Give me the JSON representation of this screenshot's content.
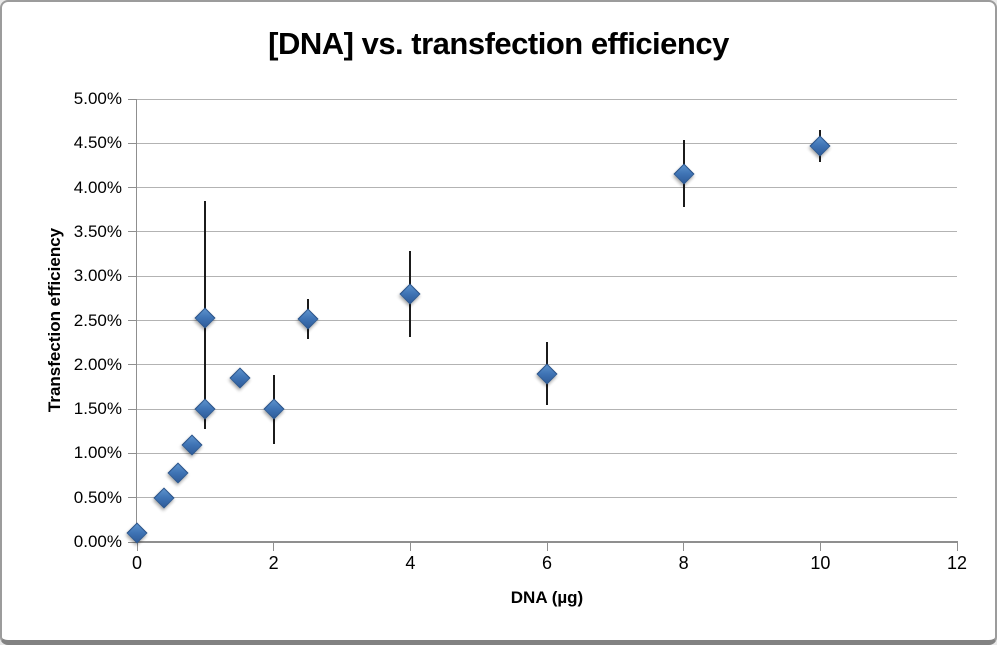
{
  "chart_data": {
    "type": "scatter",
    "title": "[DNA] vs. transfection efficiency",
    "xlabel": "DNA (µg)",
    "ylabel": "Transfection efficiency",
    "xlim": [
      0,
      12
    ],
    "ylim_percent": [
      0,
      5
    ],
    "x_tick_values": [
      0,
      2,
      4,
      6,
      8,
      10,
      12
    ],
    "x_tick_labels": [
      "0",
      "2",
      "4",
      "6",
      "8",
      "10",
      "12"
    ],
    "y_tick_values_percent": [
      0,
      0.5,
      1,
      1.5,
      2,
      2.5,
      3,
      3.5,
      4,
      4.5,
      5
    ],
    "y_tick_labels": [
      "0.00%",
      "0.50%",
      "1.00%",
      "1.50%",
      "2.00%",
      "2.50%",
      "3.00%",
      "3.50%",
      "4.00%",
      "4.50%",
      "5.00%"
    ],
    "grid": "horizontal",
    "legend": "none",
    "marker_shape": "diamond",
    "error_bars": "vertical, no caps",
    "points": [
      {
        "x": 0,
        "y_pct": 0.1
      },
      {
        "x": 0.4,
        "y_pct": 0.5
      },
      {
        "x": 0.6,
        "y_pct": 0.78
      },
      {
        "x": 0.8,
        "y_pct": 1.1
      },
      {
        "x": 1,
        "y_pct": 1.5,
        "err_lo_pct": 1.3,
        "err_hi_pct": 1.72
      },
      {
        "x": 1,
        "y_pct": 2.53,
        "err_lo_pct": 1.28,
        "err_hi_pct": 3.85
      },
      {
        "x": 1.5,
        "y_pct": 1.85
      },
      {
        "x": 2,
        "y_pct": 1.5,
        "err_lo_pct": 1.11,
        "err_hi_pct": 1.89
      },
      {
        "x": 2.5,
        "y_pct": 2.52,
        "err_lo_pct": 2.29,
        "err_hi_pct": 2.74
      },
      {
        "x": 4,
        "y_pct": 2.8,
        "err_lo_pct": 2.31,
        "err_hi_pct": 3.28
      },
      {
        "x": 6,
        "y_pct": 1.9,
        "err_lo_pct": 1.55,
        "err_hi_pct": 2.26
      },
      {
        "x": 8,
        "y_pct": 4.15,
        "err_lo_pct": 3.78,
        "err_hi_pct": 4.54
      },
      {
        "x": 10,
        "y_pct": 4.47,
        "err_lo_pct": 4.29,
        "err_hi_pct": 4.65
      }
    ],
    "colors": {
      "marker_fill": "#3f74b5",
      "error_bar": "#1b1b1b",
      "gridline": "#b3b3b3",
      "axis_line": "#8f8f8f",
      "text": "#000000",
      "frame_border": "#9c9c9c",
      "background": "#ffffff"
    }
  }
}
